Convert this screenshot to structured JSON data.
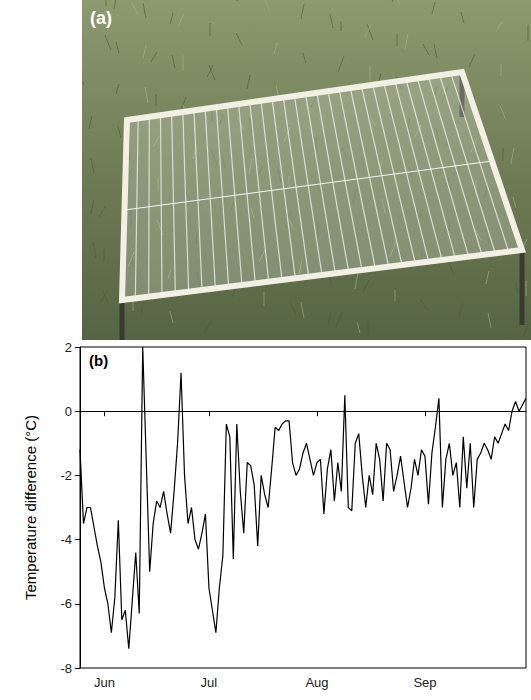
{
  "panel_a": {
    "label": "(a)"
  },
  "chart_data": {
    "type": "line",
    "title": "(b)",
    "y_label": "Temperature difference (°C)",
    "categories": [
      null,
      null,
      null,
      null,
      null,
      null,
      null,
      "Jun",
      null,
      null,
      null,
      null,
      null,
      null,
      null,
      null,
      null,
      null,
      null,
      null,
      null,
      null,
      null,
      null,
      null,
      null,
      null,
      null,
      null,
      null,
      null,
      null,
      null,
      null,
      null,
      null,
      null,
      "Jul",
      null,
      null,
      null,
      null,
      null,
      null,
      null,
      null,
      null,
      null,
      null,
      null,
      null,
      null,
      null,
      null,
      null,
      null,
      null,
      null,
      null,
      null,
      null,
      null,
      null,
      null,
      null,
      null,
      null,
      null,
      "Aug",
      null,
      null,
      null,
      null,
      null,
      null,
      null,
      null,
      null,
      null,
      null,
      null,
      null,
      null,
      null,
      null,
      null,
      null,
      null,
      null,
      null,
      null,
      null,
      null,
      null,
      null,
      null,
      null,
      null,
      null,
      "Sep",
      null,
      null,
      null,
      null,
      null,
      null,
      null,
      null,
      null,
      null,
      null,
      null,
      null,
      null,
      null,
      null,
      null,
      null,
      null,
      null,
      null,
      null,
      null,
      null,
      null,
      null,
      null,
      null,
      null
    ],
    "values": [
      -1.2,
      -3.5,
      -3.0,
      -3.0,
      -3.6,
      -4.2,
      -4.7,
      -5.5,
      -6.0,
      -6.9,
      -5.8,
      -3.4,
      -6.5,
      -6.2,
      -7.4,
      -5.9,
      -4.4,
      -6.3,
      2.0,
      -1.5,
      -5.0,
      -3.5,
      -2.8,
      -3.0,
      -2.5,
      -3.2,
      -3.8,
      -2.5,
      -1.0,
      1.2,
      -2.0,
      -3.5,
      -3.0,
      -4.0,
      -4.3,
      -3.8,
      -3.2,
      -5.5,
      -6.2,
      -6.9,
      -5.5,
      -4.5,
      -0.4,
      -0.8,
      -4.6,
      -0.4,
      -2.5,
      -3.8,
      -1.6,
      -1.7,
      -2.3,
      -4.2,
      -2.0,
      -2.6,
      -3.0,
      -1.8,
      -0.5,
      -0.6,
      -0.4,
      -0.3,
      -0.3,
      -1.6,
      -2.0,
      -1.8,
      -1.3,
      -1.0,
      -1.5,
      -2.0,
      -1.6,
      -1.5,
      -3.2,
      -1.8,
      -1.2,
      -2.8,
      -1.6,
      -2.5,
      0.5,
      -3.0,
      -3.1,
      -1.0,
      -0.7,
      -2.0,
      -3.0,
      -2.0,
      -2.6,
      -1.0,
      -1.5,
      -2.8,
      -1.0,
      -1.2,
      -2.5,
      -2.0,
      -1.4,
      -2.2,
      -3.0,
      -2.4,
      -1.5,
      -2.0,
      -1.2,
      -1.4,
      -2.9,
      -1.3,
      -0.5,
      0.4,
      -3.0,
      -1.5,
      -1.0,
      -2.0,
      -1.6,
      -3.0,
      -0.8,
      -2.4,
      -1.0,
      -3.0,
      -1.5,
      -1.3,
      -1.0,
      -1.2,
      -1.5,
      -0.8,
      -1.0,
      -0.7,
      -0.4,
      -0.6,
      0.0,
      0.3,
      0.0,
      0.2,
      0.4
    ],
    "color": "#000000",
    "ylim": [
      -8,
      2
    ],
    "yticks": [
      -8,
      -6,
      -4,
      -2,
      0,
      2
    ],
    "reference_lines": [
      0
    ],
    "grid": false
  }
}
